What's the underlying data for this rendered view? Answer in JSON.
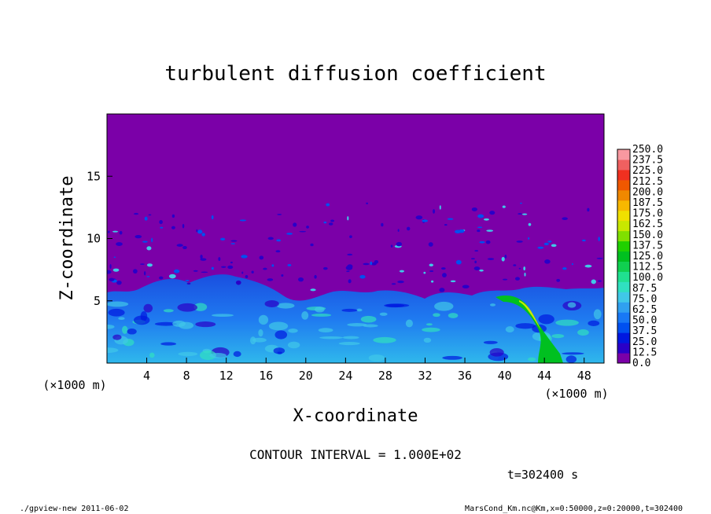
{
  "chart_data": {
    "type": "heatmap",
    "title": "turbulent diffusion coefficient",
    "xlabel": "X-coordinate",
    "ylabel": "Z-coordinate",
    "x_unit": "(×1000 m)",
    "y_unit": "(×1000 m)",
    "xlim": [
      0,
      50
    ],
    "ylim": [
      0,
      20
    ],
    "x_ticks": [
      4,
      8,
      12,
      16,
      20,
      24,
      28,
      32,
      36,
      40,
      44,
      48
    ],
    "y_ticks": [
      5,
      10,
      15
    ],
    "colorbar": {
      "levels": [
        "0.0",
        "12.5",
        "25.0",
        "37.5",
        "50.0",
        "62.5",
        "75.0",
        "87.5",
        "100.0",
        "112.5",
        "125.0",
        "137.5",
        "150.0",
        "162.5",
        "175.0",
        "187.5",
        "200.0",
        "212.5",
        "225.0",
        "237.5",
        "250.0"
      ],
      "colors": [
        "#7B00A8",
        "#2A00C8",
        "#0018E0",
        "#0050F0",
        "#1878F5",
        "#30A0F0",
        "#40C8E8",
        "#30E0C0",
        "#20E090",
        "#10D050",
        "#00C020",
        "#20D000",
        "#80E000",
        "#C8E800",
        "#F0E000",
        "#F8B800",
        "#F08800",
        "#F05800",
        "#F03020",
        "#F06060",
        "#F898A0"
      ]
    },
    "field_description_values": {
      "background_value": 0.0,
      "boundary_layer_top_km": 6.0,
      "max_region_x_km": [
        40,
        46
      ],
      "max_region_value_range": [
        125.0,
        175.0
      ]
    },
    "contour_interval": "CONTOUR INTERVAL = 1.000E+02",
    "time_label": "t=302400 s",
    "footer_left": "./gpview-new  2011-06-02",
    "footer_right": "MarsCond_Km.nc@Km,x=0:50000,z=0:20000,t=302400"
  }
}
